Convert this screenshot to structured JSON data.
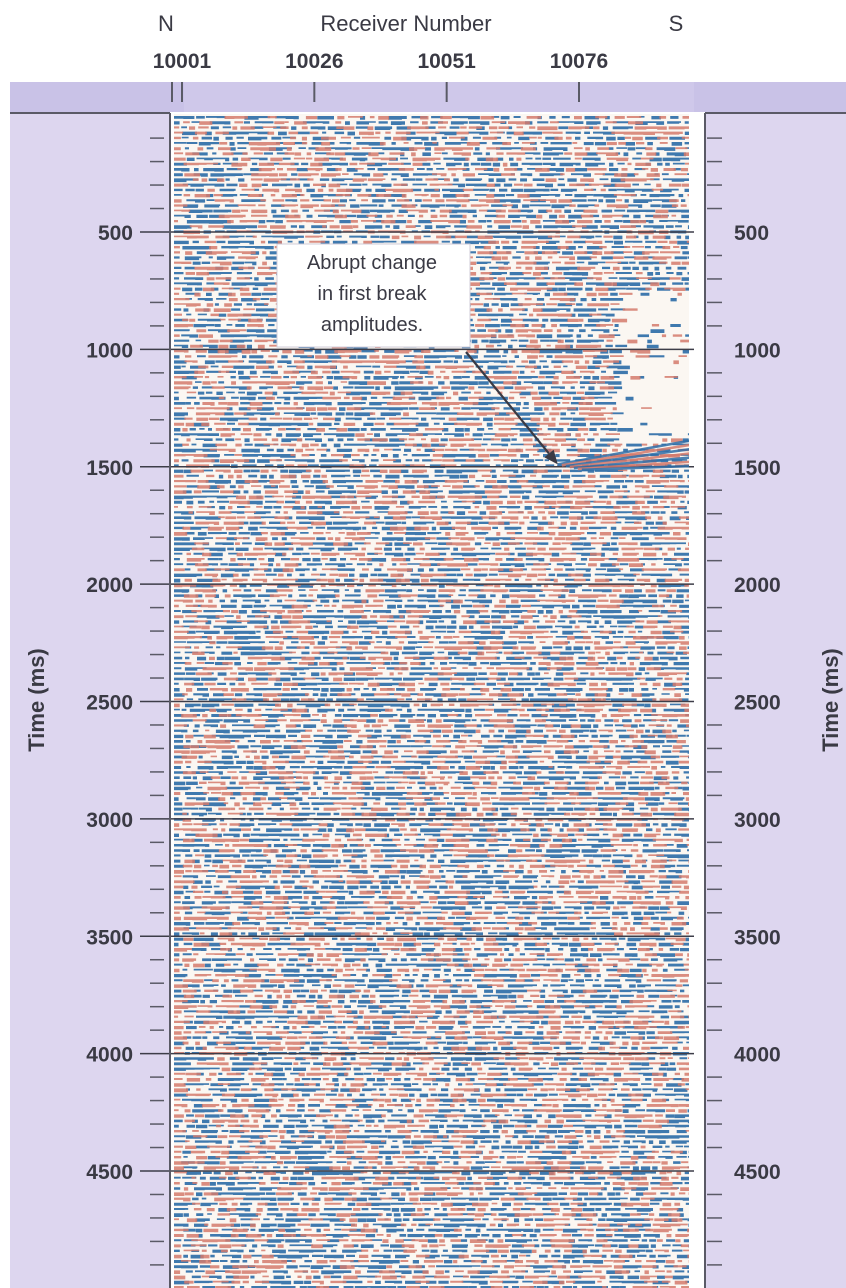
{
  "header": {
    "left_label": "N",
    "title": "Receiver Number",
    "right_label": "S"
  },
  "chart_data": {
    "type": "heatmap",
    "description_of_data": "seismic shot record, wiggle amplitude display",
    "x_axis": {
      "label": "Receiver Number",
      "tick_values": [
        10001,
        10026,
        10051,
        10076
      ],
      "tick_labels": [
        "10001",
        "10026",
        "10051",
        "10076"
      ],
      "range": [
        10001,
        10098
      ]
    },
    "y_axis_left": {
      "label": "Time (ms)",
      "tick_values": [
        500,
        1000,
        1500,
        2000,
        2500,
        3000,
        3500,
        4000,
        4500
      ],
      "tick_labels": [
        "500",
        "1000",
        "1500",
        "2000",
        "2500",
        "3000",
        "3500",
        "4000",
        "4500"
      ],
      "range": [
        0,
        4980
      ],
      "inverted": true
    },
    "y_axis_right": {
      "label": "Time (ms)",
      "tick_values": [
        500,
        1000,
        1500,
        2000,
        2500,
        3000,
        3500,
        4000,
        4500
      ],
      "tick_labels": [
        "500",
        "1000",
        "1500",
        "2000",
        "2500",
        "3000",
        "3500",
        "4000",
        "4500"
      ]
    },
    "grid": true,
    "gridlines_at_ms": [
      500,
      1000,
      1500,
      2000,
      2500,
      3000,
      3500,
      4000,
      4500
    ],
    "annotations": [
      {
        "text_lines": [
          "Abrupt change",
          "in first break",
          "amplitudes."
        ],
        "arrow_target": {
          "receiver": 10072,
          "time_ms": 1490
        }
      }
    ],
    "first_break_event": [
      {
        "receiver": 10072,
        "time_ms": 1490
      },
      {
        "receiver": 10098,
        "time_ms": 1380
      }
    ],
    "quiet_zone": {
      "receiver_from": 10083,
      "receiver_to": 10098,
      "time_from_ms": 750,
      "time_to_ms": 1400
    }
  },
  "colors": {
    "panel_bg": "#ddd6ef",
    "panel_top": "#c7c0e6",
    "trace_blue": "#2f6ea8",
    "trace_red": "#d47a6c",
    "paper": "#fbf7f2",
    "gridline": "#3d3d48",
    "text": "#3a3a44",
    "axis_box": "#5a5a66"
  }
}
